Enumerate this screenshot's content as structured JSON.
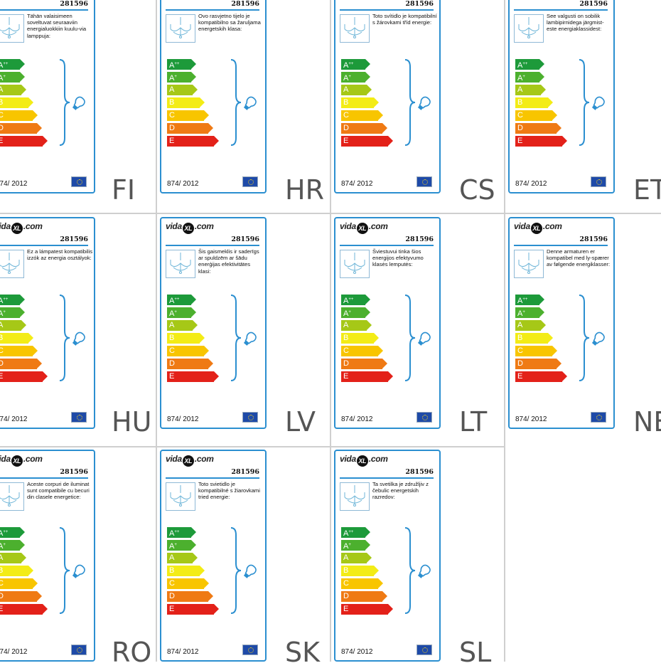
{
  "brand": {
    "pre": "vida",
    "mid": "XL",
    "post": ".com"
  },
  "code": "281596",
  "regulation": "874/ 2012",
  "classes": [
    {
      "main": "A",
      "sup": "++",
      "color": "#1d9a3a"
    },
    {
      "main": "A",
      "sup": "+",
      "color": "#4cb02e"
    },
    {
      "main": "A",
      "sup": "",
      "color": "#a6c817"
    },
    {
      "main": "B",
      "sup": "",
      "color": "#f3ec16"
    },
    {
      "main": "C",
      "sup": "",
      "color": "#f8c500"
    },
    {
      "main": "D",
      "sup": "",
      "color": "#ef7a14"
    },
    {
      "main": "E",
      "sup": "",
      "color": "#e32119"
    }
  ],
  "labels": [
    {
      "lang": "FI",
      "text": "Tähän valaisimeen soveltuvat seuraaviin energialuokkiin kuulu-via lamppuja:"
    },
    {
      "lang": "HR",
      "text": "Ovo rasvjetno tijelo je kompatibilno sa žaruljama energetskih klasa:"
    },
    {
      "lang": "CS",
      "text": "Toto svítidlo je kompatibilní s žárovkami tříd energie:"
    },
    {
      "lang": "ET",
      "text": "See valgusti on sobilik lambipirnidega järgmist-este energiaklassidest:"
    },
    {
      "lang": "HU",
      "text": "Ez a lámpatest kompatibilis izzók az energia osztályok:"
    },
    {
      "lang": "LV",
      "text": "Šis gaismeklis ir saderīgs ar spuldzēm ar šādu enerģijas efektivitātes klasi:"
    },
    {
      "lang": "LT",
      "text": "Šviestuvui tinka šios energijos efektyvumo klasės lemputės:"
    },
    {
      "lang": "NE",
      "text": "Denne armaturen er kompatibel med ly-spærer av følgende energiklasser:"
    },
    {
      "lang": "RO",
      "text": "Aceste corpuri de iluminat sunt compatibile cu becuri din clasele energetice:"
    },
    {
      "lang": "SK",
      "text": "Toto svietidlo je kompatibilné s žiarovkami tried energie:"
    },
    {
      "lang": "SL",
      "text": "Ta svetilka je združljiv z čebulic energetskih razredov:"
    }
  ]
}
